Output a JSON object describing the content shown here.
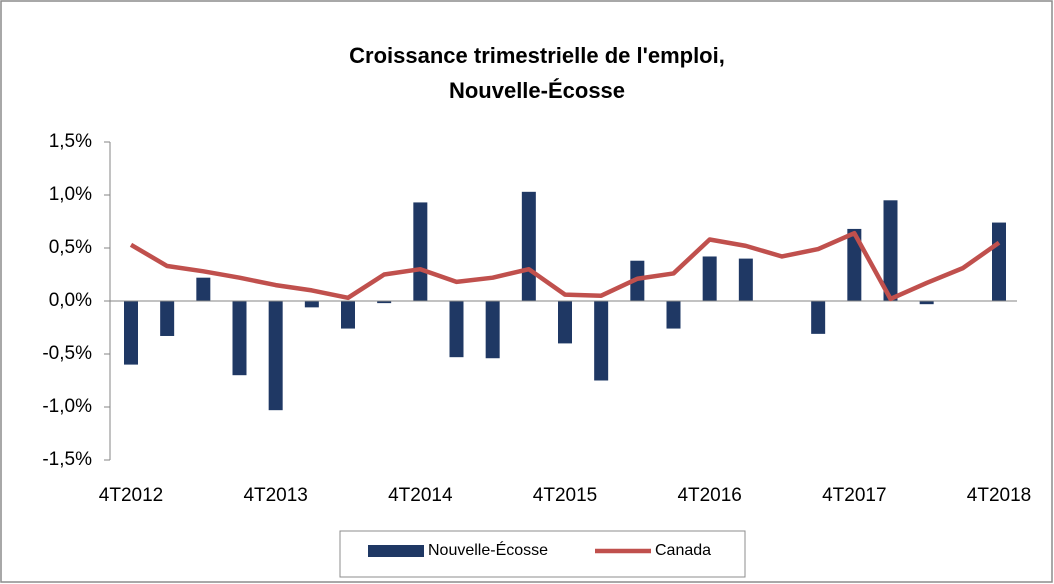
{
  "chart_data": {
    "type": "combo",
    "title": [
      "Croissance trimestrielle de l'emploi,",
      "Nouvelle-Écosse"
    ],
    "categories": [
      "4T2012",
      null,
      null,
      null,
      "4T2013",
      null,
      null,
      null,
      "4T2014",
      null,
      null,
      null,
      "4T2015",
      null,
      null,
      null,
      "4T2016",
      null,
      null,
      null,
      "4T2017",
      null,
      null,
      null,
      "4T2018"
    ],
    "series": [
      {
        "name": "Nouvelle-Écosse",
        "type": "bar",
        "color": "#1f3864",
        "values": [
          -0.6,
          -0.33,
          0.22,
          -0.7,
          -1.03,
          -0.06,
          -0.26,
          -0.02,
          0.93,
          -0.53,
          -0.54,
          1.03,
          -0.4,
          -0.75,
          0.38,
          -0.26,
          0.42,
          0.4,
          0,
          -0.31,
          0.68,
          0.95,
          -0.03,
          0,
          0.74
        ]
      },
      {
        "name": "Canada",
        "type": "line",
        "color": "#c0504d",
        "values": [
          0.53,
          0.33,
          0.28,
          0.22,
          0.15,
          0.1,
          0.03,
          0.25,
          0.3,
          0.18,
          0.22,
          0.3,
          0.06,
          0.05,
          0.21,
          0.26,
          0.58,
          0.52,
          0.42,
          0.49,
          0.64,
          0.02,
          0.17,
          0.31,
          0.55
        ]
      }
    ],
    "ylim": [
      -1.5,
      1.5
    ],
    "yticks": [
      {
        "value": -1.5,
        "label": "-1,5%"
      },
      {
        "value": -1,
        "label": "-1,0%"
      },
      {
        "value": -0.5,
        "label": "-0,5%"
      },
      {
        "value": 0,
        "label": "0,0%"
      },
      {
        "value": 0.5,
        "label": "0,5%"
      },
      {
        "value": 1,
        "label": "1,0%"
      },
      {
        "value": 1.5,
        "label": "1,5%"
      }
    ],
    "legend": "bottom"
  }
}
